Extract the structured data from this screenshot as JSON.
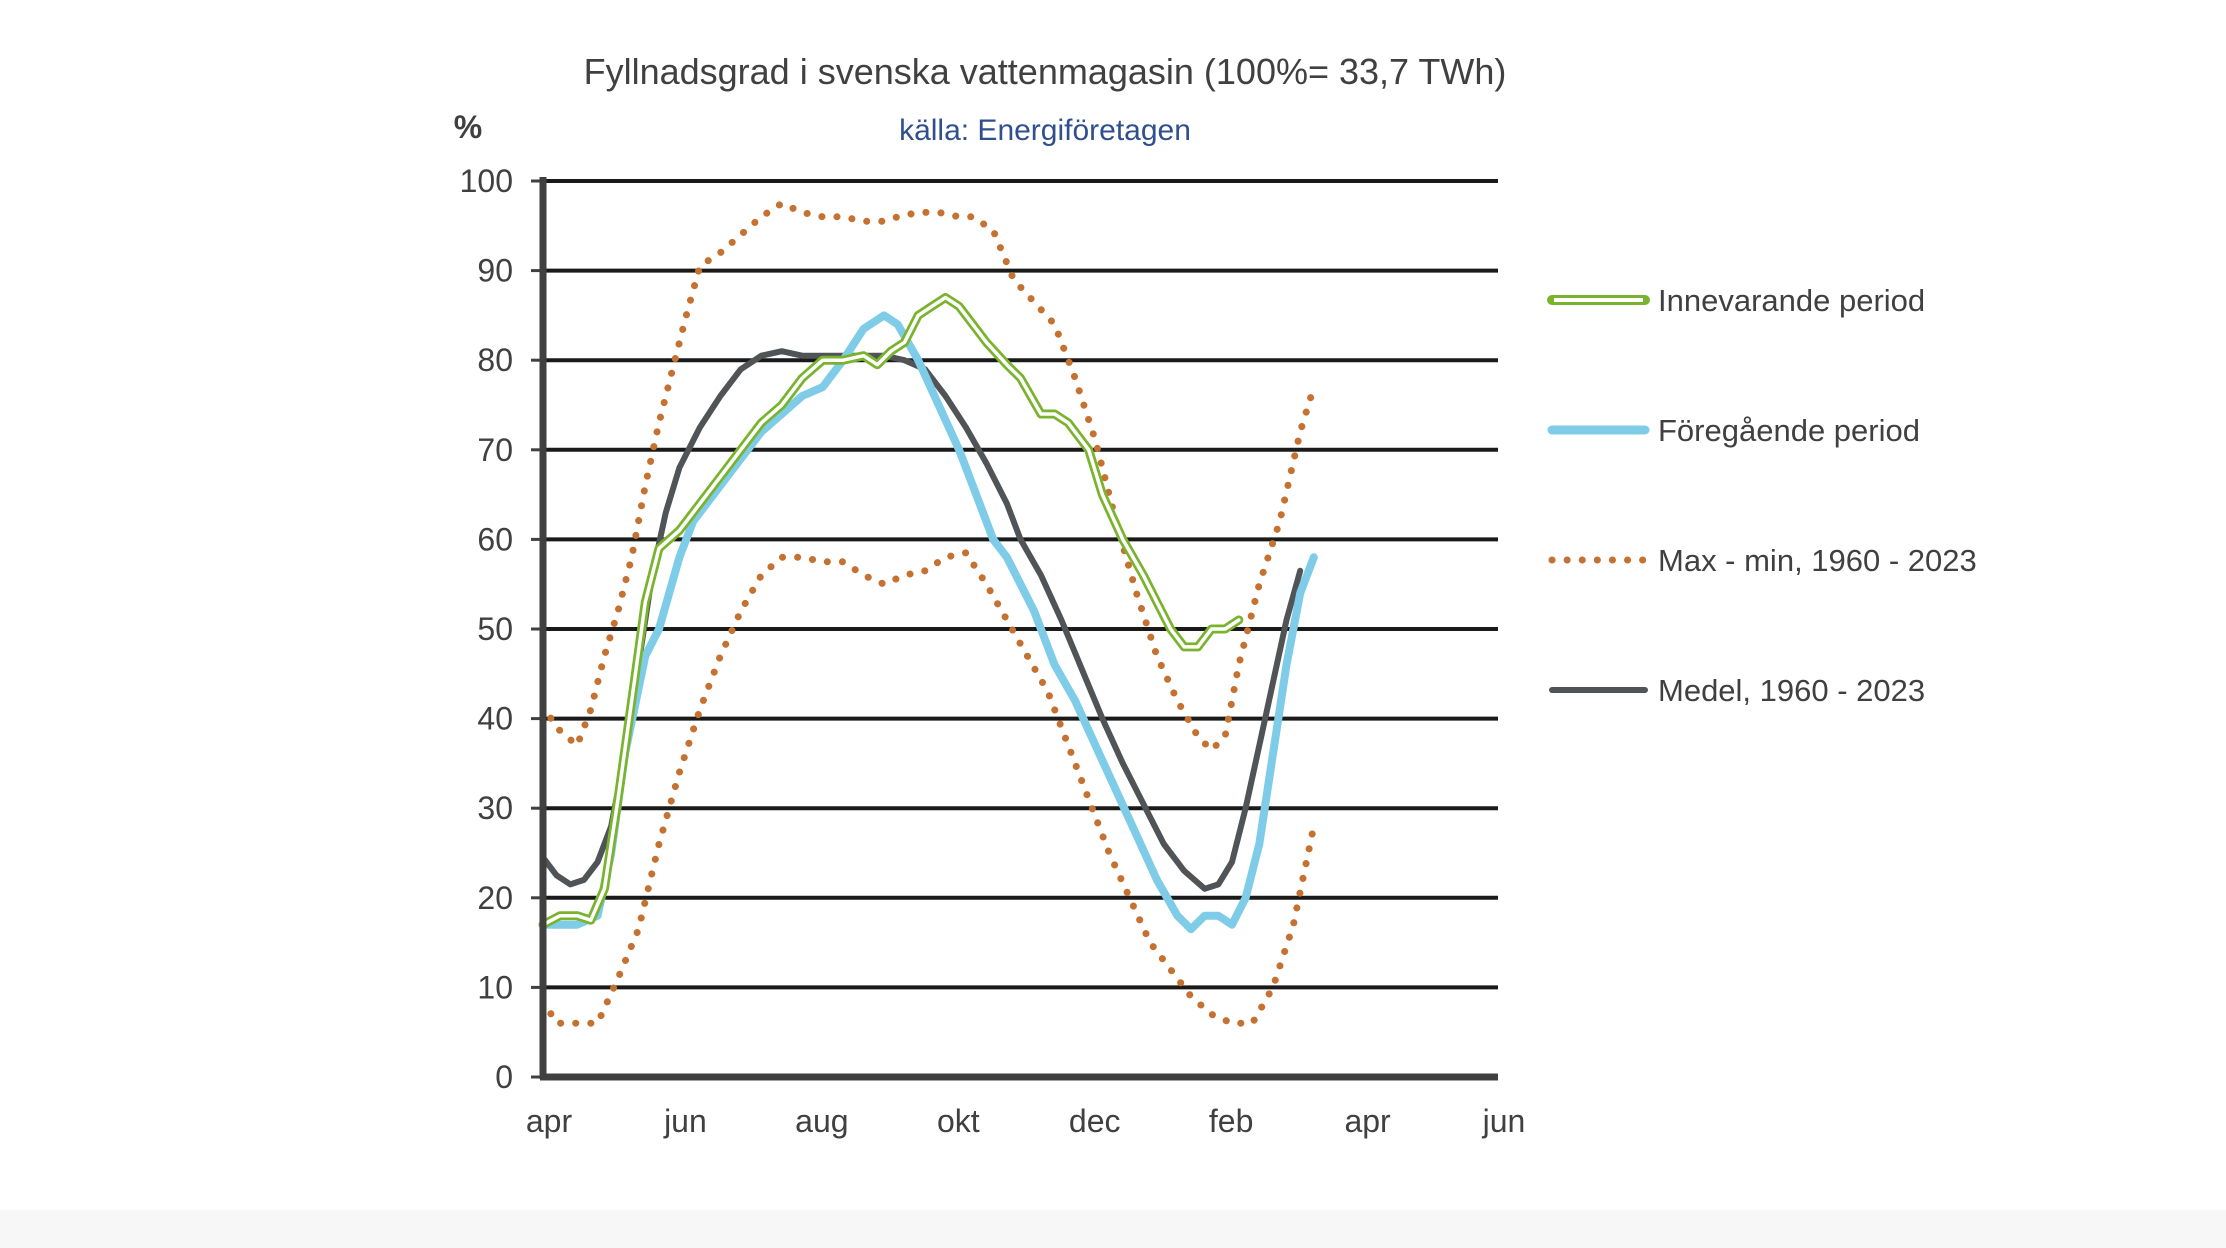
{
  "chart_data": {
    "type": "line",
    "title": "Fyllnadsgrad i svenska vattenmagasin (100%= 33,7 TWh)",
    "subtitle": "källa: Energiföretagen",
    "ylabel": "%",
    "xlabel": "",
    "ylim": [
      0,
      100
    ],
    "yticks": [
      0,
      10,
      20,
      30,
      40,
      50,
      60,
      70,
      80,
      90,
      100
    ],
    "xlim": [
      0,
      14
    ],
    "xtick_labels": [
      {
        "x": 0,
        "label": "apr"
      },
      {
        "x": 2,
        "label": "jun"
      },
      {
        "x": 4,
        "label": "aug"
      },
      {
        "x": 6,
        "label": "okt"
      },
      {
        "x": 8,
        "label": "dec"
      },
      {
        "x": 10,
        "label": "feb"
      },
      {
        "x": 12,
        "label": "apr"
      },
      {
        "x": 14,
        "label": "jun"
      }
    ],
    "grid": true,
    "legend_position": "right",
    "series": [
      {
        "name": "Innevarande period",
        "style": "double",
        "color": "#7ab32e",
        "points": [
          [
            0,
            17
          ],
          [
            0.25,
            18
          ],
          [
            0.5,
            18
          ],
          [
            0.7,
            17.5
          ],
          [
            0.9,
            21
          ],
          [
            1.1,
            31
          ],
          [
            1.3,
            42
          ],
          [
            1.5,
            53
          ],
          [
            1.7,
            59
          ],
          [
            2,
            61
          ],
          [
            2.3,
            64
          ],
          [
            2.6,
            67
          ],
          [
            2.9,
            70
          ],
          [
            3.2,
            73
          ],
          [
            3.5,
            75
          ],
          [
            3.8,
            78
          ],
          [
            4.1,
            80
          ],
          [
            4.4,
            80
          ],
          [
            4.7,
            80.5
          ],
          [
            4.9,
            79.5
          ],
          [
            5.1,
            81
          ],
          [
            5.3,
            82
          ],
          [
            5.5,
            85
          ],
          [
            5.7,
            86
          ],
          [
            5.9,
            87
          ],
          [
            6.1,
            86
          ],
          [
            6.3,
            84
          ],
          [
            6.5,
            82
          ],
          [
            6.8,
            79.5
          ],
          [
            7,
            78
          ],
          [
            7.3,
            74
          ],
          [
            7.5,
            74
          ],
          [
            7.7,
            73
          ],
          [
            8,
            70
          ],
          [
            8.2,
            65
          ],
          [
            8.5,
            60
          ],
          [
            8.8,
            56
          ],
          [
            9,
            53
          ],
          [
            9.2,
            50
          ],
          [
            9.4,
            48
          ],
          [
            9.6,
            48
          ],
          [
            9.8,
            50
          ],
          [
            10,
            50
          ],
          [
            10.2,
            51
          ]
        ]
      },
      {
        "name": "Föregående period",
        "style": "thick",
        "color": "#7fcce8",
        "points": [
          [
            0,
            17
          ],
          [
            0.3,
            17
          ],
          [
            0.5,
            17
          ],
          [
            0.8,
            18
          ],
          [
            1,
            25
          ],
          [
            1.2,
            36
          ],
          [
            1.5,
            47
          ],
          [
            1.7,
            50
          ],
          [
            2,
            58
          ],
          [
            2.2,
            62
          ],
          [
            2.5,
            65
          ],
          [
            2.8,
            68
          ],
          [
            3.2,
            72
          ],
          [
            3.5,
            74
          ],
          [
            3.8,
            76
          ],
          [
            4.1,
            77
          ],
          [
            4.4,
            80
          ],
          [
            4.7,
            83.5
          ],
          [
            5,
            85
          ],
          [
            5.2,
            84
          ],
          [
            5.5,
            80
          ],
          [
            5.8,
            75
          ],
          [
            6.1,
            70
          ],
          [
            6.4,
            64
          ],
          [
            6.6,
            60
          ],
          [
            6.8,
            58
          ],
          [
            7.2,
            52
          ],
          [
            7.5,
            46
          ],
          [
            7.8,
            42
          ],
          [
            8.1,
            37
          ],
          [
            8.4,
            32
          ],
          [
            8.7,
            27
          ],
          [
            9,
            22
          ],
          [
            9.3,
            18
          ],
          [
            9.5,
            16.5
          ],
          [
            9.7,
            18
          ],
          [
            9.9,
            18
          ],
          [
            10.1,
            17
          ],
          [
            10.3,
            20
          ],
          [
            10.5,
            26
          ],
          [
            10.7,
            36
          ],
          [
            10.9,
            46
          ],
          [
            11.1,
            54
          ],
          [
            11.3,
            58
          ]
        ]
      },
      {
        "name": "Medel, 1960 - 2023",
        "style": "solid",
        "color": "#505456",
        "points": [
          [
            0,
            24.5
          ],
          [
            0.2,
            22.5
          ],
          [
            0.4,
            21.5
          ],
          [
            0.6,
            22
          ],
          [
            0.8,
            24
          ],
          [
            1,
            28
          ],
          [
            1.2,
            36
          ],
          [
            1.4,
            46
          ],
          [
            1.6,
            56
          ],
          [
            1.8,
            63
          ],
          [
            2,
            68
          ],
          [
            2.3,
            72.5
          ],
          [
            2.6,
            76
          ],
          [
            2.9,
            79
          ],
          [
            3.2,
            80.5
          ],
          [
            3.5,
            81
          ],
          [
            3.8,
            80.5
          ],
          [
            4.2,
            80.5
          ],
          [
            4.6,
            80.5
          ],
          [
            5,
            80.5
          ],
          [
            5.3,
            80
          ],
          [
            5.6,
            79
          ],
          [
            5.9,
            76
          ],
          [
            6.2,
            72.5
          ],
          [
            6.5,
            68.5
          ],
          [
            6.8,
            64
          ],
          [
            7,
            60
          ],
          [
            7.3,
            56
          ],
          [
            7.6,
            51
          ],
          [
            7.9,
            45.5
          ],
          [
            8.2,
            40
          ],
          [
            8.5,
            35
          ],
          [
            8.8,
            30.5
          ],
          [
            9.1,
            26
          ],
          [
            9.4,
            23
          ],
          [
            9.7,
            21
          ],
          [
            9.9,
            21.5
          ],
          [
            10.1,
            24
          ],
          [
            10.3,
            30
          ],
          [
            10.5,
            37
          ],
          [
            10.7,
            44
          ],
          [
            10.9,
            51
          ],
          [
            11.1,
            56.5
          ]
        ]
      },
      {
        "name": "Max - min, 1960 - 2023",
        "style": "dotted",
        "color": "#c47132",
        "points": [
          [
            0,
            41.5
          ],
          [
            0.2,
            39
          ],
          [
            0.5,
            37
          ],
          [
            0.7,
            41
          ],
          [
            0.9,
            47
          ],
          [
            1.1,
            52
          ],
          [
            1.3,
            58
          ],
          [
            1.5,
            66
          ],
          [
            1.7,
            73
          ],
          [
            1.9,
            79
          ],
          [
            2.1,
            85
          ],
          [
            2.3,
            90.5
          ],
          [
            2.6,
            92
          ],
          [
            2.9,
            94
          ],
          [
            3.2,
            96
          ],
          [
            3.5,
            97.5
          ],
          [
            3.8,
            96.5
          ],
          [
            4.1,
            96
          ],
          [
            4.4,
            96
          ],
          [
            4.7,
            95.5
          ],
          [
            5,
            95.5
          ],
          [
            5.2,
            96
          ],
          [
            5.5,
            96.5
          ],
          [
            5.8,
            96.5
          ],
          [
            6.1,
            96
          ],
          [
            6.3,
            96
          ],
          [
            6.6,
            94.5
          ],
          [
            6.9,
            89
          ],
          [
            7.2,
            86.5
          ],
          [
            7.5,
            84
          ],
          [
            7.8,
            78
          ],
          [
            8.1,
            71
          ],
          [
            8.4,
            62
          ],
          [
            8.7,
            54
          ],
          [
            9,
            47
          ],
          [
            9.3,
            42
          ],
          [
            9.6,
            38
          ],
          [
            9.8,
            36.5
          ],
          [
            10,
            38
          ],
          [
            10.2,
            46
          ],
          [
            10.5,
            55
          ],
          [
            10.8,
            62
          ],
          [
            11.1,
            72
          ],
          [
            11.3,
            77
          ]
        ]
      },
      {
        "name": "Max - min, 1960 - 2023 (min)",
        "style": "dotted",
        "color": "#c47132",
        "points": [
          [
            0,
            8.5
          ],
          [
            0.2,
            6
          ],
          [
            0.5,
            6
          ],
          [
            0.8,
            6
          ],
          [
            1.1,
            11
          ],
          [
            1.4,
            16.5
          ],
          [
            1.7,
            26
          ],
          [
            2,
            34
          ],
          [
            2.3,
            41
          ],
          [
            2.6,
            47
          ],
          [
            2.9,
            52
          ],
          [
            3.2,
            56
          ],
          [
            3.5,
            58
          ],
          [
            3.8,
            58
          ],
          [
            4.1,
            57.5
          ],
          [
            4.4,
            57.5
          ],
          [
            4.7,
            56
          ],
          [
            5,
            55
          ],
          [
            5.3,
            56
          ],
          [
            5.6,
            56.5
          ],
          [
            5.9,
            58
          ],
          [
            6.2,
            58.5
          ],
          [
            6.5,
            55
          ],
          [
            6.8,
            51
          ],
          [
            7.1,
            47
          ],
          [
            7.4,
            43
          ],
          [
            7.7,
            37
          ],
          [
            8,
            31
          ],
          [
            8.3,
            25
          ],
          [
            8.6,
            20
          ],
          [
            8.9,
            15
          ],
          [
            9.2,
            12
          ],
          [
            9.5,
            9
          ],
          [
            9.8,
            7
          ],
          [
            10.1,
            6
          ],
          [
            10.4,
            6
          ],
          [
            10.7,
            10
          ],
          [
            11,
            17
          ],
          [
            11.3,
            28
          ]
        ]
      }
    ],
    "legend": [
      {
        "label": "Innevarande period",
        "style": "double",
        "color": "#7ab32e"
      },
      {
        "label": "Föregående period",
        "style": "thick",
        "color": "#7fcce8"
      },
      {
        "label": "Max - min, 1960 - 2023",
        "style": "dotted",
        "color": "#c47132"
      },
      {
        "label": "Medel, 1960 - 2023",
        "style": "solid",
        "color": "#505456"
      }
    ],
    "colors": {
      "title": "#404040",
      "subtitle": "#2f4f8f",
      "axis": "#404040",
      "grid": "#1a1a1a",
      "tick_label": "#404040"
    }
  }
}
